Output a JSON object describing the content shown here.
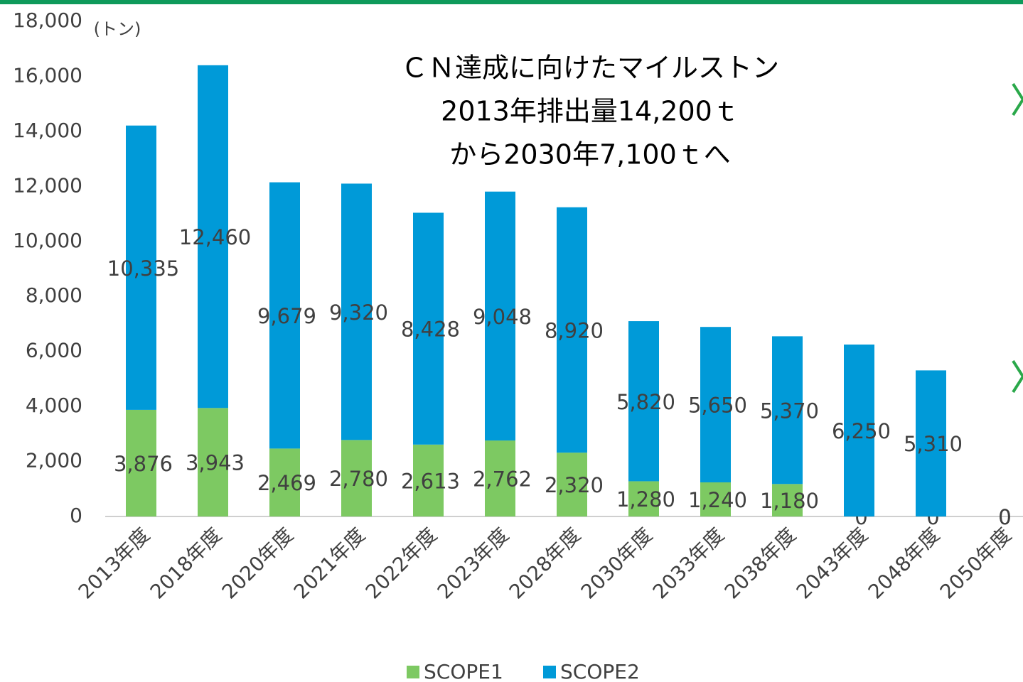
{
  "chart_data": {
    "type": "stacked_bar",
    "title": [
      "ＣＮ達成に向けたマイルストン",
      "2013年排出量14,200ｔ",
      "から2030年7,100ｔへ"
    ],
    "y_label": "(トン)",
    "categories": [
      "2013年度",
      "2018年度",
      "2020年度",
      "2021年度",
      "2022年度",
      "2023年度",
      "2028年度",
      "2030年度",
      "2033年度",
      "2038年度",
      "2043年度",
      "2048年度",
      "2050年度"
    ],
    "series": [
      {
        "name": "SCOPE1",
        "color": "#7dc962",
        "values": [
          3876,
          3943,
          2469,
          2780,
          2613,
          2762,
          2320,
          1280,
          1240,
          1180,
          0,
          0,
          0
        ]
      },
      {
        "name": "SCOPE2",
        "color": "#009ad8",
        "values": [
          10335,
          12460,
          9679,
          9320,
          8428,
          9048,
          8920,
          5820,
          5650,
          5370,
          6250,
          5310,
          0
        ]
      }
    ],
    "value_labels": [
      [
        "3,876",
        "3,943",
        "2,469",
        "2,780",
        "2,613",
        "2,762",
        "2,320",
        "1,280",
        "1,240",
        "1,180",
        "0",
        "0",
        "0"
      ],
      [
        "10,335",
        "12,460",
        "9,679",
        "9,320",
        "8,428",
        "9,048",
        "8,920",
        "5,820",
        "5,650",
        "5,370",
        "6,250",
        "5,310",
        "0"
      ]
    ],
    "ylim": [
      0,
      18000
    ],
    "yticks": [
      0,
      {
        "value": 2000,
        "label": "2,000"
      },
      {
        "value": 4000,
        "label": "4,000"
      },
      {
        "value": 6000,
        "label": "6,000"
      },
      {
        "value": 8000,
        "label": "8,000"
      },
      {
        "value": 10000,
        "label": "10,000"
      },
      {
        "value": 12000,
        "label": "12,000"
      },
      {
        "value": 14000,
        "label": "14,000"
      },
      {
        "value": 16000,
        "label": "16,000"
      },
      {
        "value": 18000,
        "label": "18,000"
      }
    ],
    "legend": "bottom"
  }
}
